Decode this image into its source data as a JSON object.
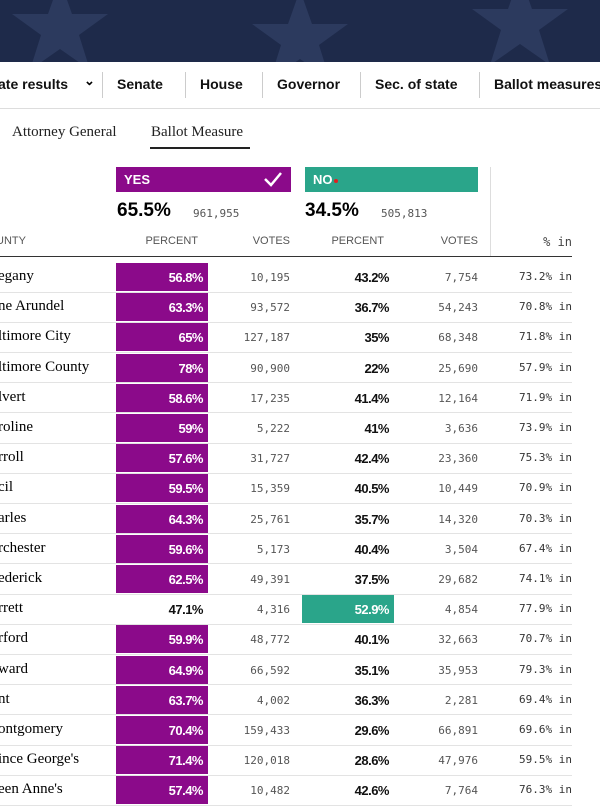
{
  "nav": {
    "items": [
      "ate results",
      "Senate",
      "House",
      "Governor",
      "Sec. of state",
      "Ballot measures"
    ]
  },
  "tabs": [
    "Attorney General",
    "Ballot Measure"
  ],
  "yes": {
    "label": "YES",
    "percent": "65.5%",
    "votes": "961,955"
  },
  "no": {
    "label": "NO",
    "percent": "34.5%",
    "votes": "505,813"
  },
  "table": {
    "headers": [
      "UNTY",
      "PERCENT",
      "VOTES",
      "PERCENT",
      "VOTES",
      "% in"
    ],
    "rows": [
      [
        "egany",
        "56.8%",
        "10,195",
        "43.2%",
        "7,754",
        "73.2% in"
      ],
      [
        "ne Arundel",
        "63.3%",
        "93,572",
        "36.7%",
        "54,243",
        "70.8% in"
      ],
      [
        "ltimore City",
        "65%",
        "127,187",
        "35%",
        "68,348",
        "71.8% in"
      ],
      [
        "ltimore County",
        "78%",
        "90,900",
        "22%",
        "25,690",
        "57.9% in"
      ],
      [
        "lvert",
        "58.6%",
        "17,235",
        "41.4%",
        "12,164",
        "71.9% in"
      ],
      [
        "roline",
        "59%",
        "5,222",
        "41%",
        "3,636",
        "73.9% in"
      ],
      [
        "rroll",
        "57.6%",
        "31,727",
        "42.4%",
        "23,360",
        "75.3% in"
      ],
      [
        "cil",
        "59.5%",
        "15,359",
        "40.5%",
        "10,449",
        "70.9% in"
      ],
      [
        "arles",
        "64.3%",
        "25,761",
        "35.7%",
        "14,320",
        "70.3% in"
      ],
      [
        "rchester",
        "59.6%",
        "5,173",
        "40.4%",
        "3,504",
        "67.4% in"
      ],
      [
        "ederick",
        "62.5%",
        "49,391",
        "37.5%",
        "29,682",
        "74.1% in"
      ],
      [
        "rrett",
        "47.1%",
        "4,316",
        "52.9%",
        "4,854",
        "77.9% in"
      ],
      [
        "rford",
        "59.9%",
        "48,772",
        "40.1%",
        "32,663",
        "70.7% in"
      ],
      [
        "ward",
        "64.9%",
        "66,592",
        "35.1%",
        "35,953",
        "79.3% in"
      ],
      [
        "nt",
        "63.7%",
        "4,002",
        "36.3%",
        "2,281",
        "69.4% in"
      ],
      [
        "ontgomery",
        "70.4%",
        "159,433",
        "29.6%",
        "66,891",
        "69.6% in"
      ],
      [
        "ince George's",
        "71.4%",
        "120,018",
        "28.6%",
        "47,976",
        "59.5% in"
      ],
      [
        "een Anne's",
        "57.4%",
        "10,482",
        "42.6%",
        "7,764",
        "76.3% in"
      ]
    ]
  }
}
